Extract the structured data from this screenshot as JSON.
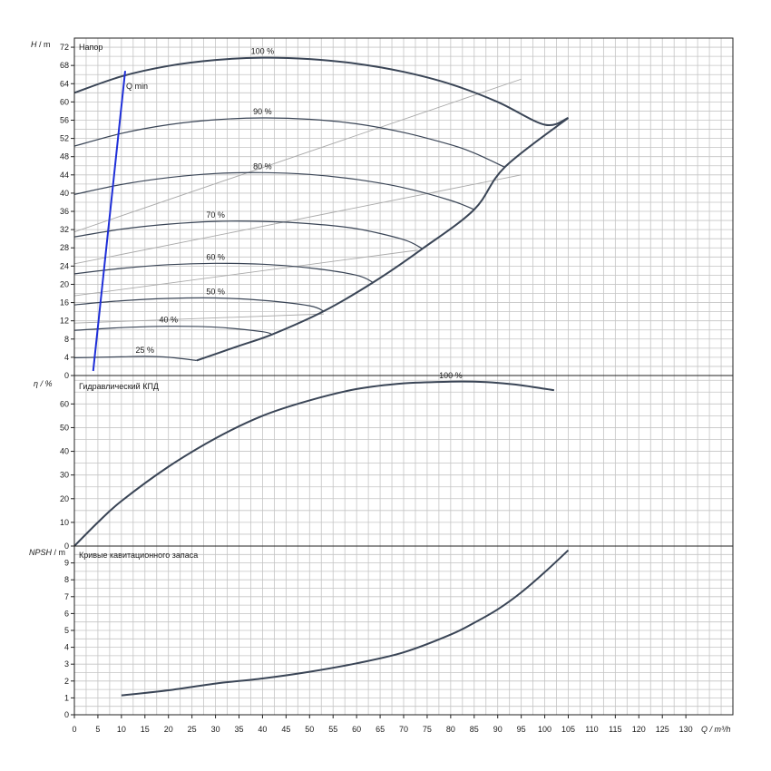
{
  "chart_data": [
    {
      "type": "line",
      "title": "Напор",
      "ylabel": "H / m",
      "xlabel": "Q / m³/h",
      "xlim": [
        0,
        140
      ],
      "ylim": [
        0,
        74
      ],
      "yticks": [
        0,
        4,
        8,
        12,
        16,
        20,
        24,
        28,
        32,
        36,
        40,
        44,
        48,
        52,
        56,
        60,
        64,
        68,
        72
      ],
      "grid": true,
      "series": [
        {
          "name": "100 %",
          "x": [
            0,
            10,
            20,
            30,
            40,
            50,
            60,
            70,
            80,
            90,
            100,
            105
          ],
          "y": [
            62,
            65.6,
            67.9,
            69.2,
            69.7,
            69.4,
            68.4,
            66.6,
            63.9,
            60,
            55,
            56.5
          ]
        },
        {
          "name": "90 %",
          "x": [
            0,
            10,
            20,
            30,
            40,
            50,
            60,
            70,
            80,
            85,
            91.5
          ],
          "y": [
            50.3,
            53.1,
            55,
            56.1,
            56.5,
            56.2,
            55.2,
            53.3,
            50.6,
            48.8,
            45.7
          ]
        },
        {
          "name": "80 %",
          "x": [
            0,
            10,
            20,
            30,
            40,
            50,
            60,
            70,
            80,
            85
          ],
          "y": [
            39.7,
            41.9,
            43.4,
            44.3,
            44.5,
            44.1,
            43,
            41.2,
            38.4,
            36.4
          ]
        },
        {
          "name": "70 %",
          "x": [
            0,
            10,
            20,
            30,
            40,
            50,
            60,
            70,
            74
          ],
          "y": [
            30.4,
            32.1,
            33.2,
            33.8,
            33.8,
            33.3,
            32.2,
            29.8,
            27.8
          ]
        },
        {
          "name": "60 %",
          "x": [
            0,
            10,
            20,
            30,
            40,
            50,
            60,
            63.5
          ],
          "y": [
            22.3,
            23.5,
            24.3,
            24.6,
            24.4,
            23.6,
            22,
            20.4
          ]
        },
        {
          "name": "50 %",
          "x": [
            0,
            10,
            20,
            30,
            40,
            50,
            53
          ],
          "y": [
            15.5,
            16.4,
            16.9,
            17,
            16.5,
            15.3,
            14.1
          ]
        },
        {
          "name": "40 %",
          "x": [
            0,
            10,
            20,
            30,
            40,
            42
          ],
          "y": [
            9.9,
            10.5,
            10.8,
            10.6,
            9.6,
            9
          ]
        },
        {
          "name": "25 %",
          "x": [
            0,
            5,
            10,
            15,
            20,
            26
          ],
          "y": [
            3.9,
            4,
            4.1,
            4.2,
            4,
            3.3
          ]
        }
      ],
      "max_boundary": {
        "x": [
          26,
          35,
          42,
          53,
          63.5,
          74,
          85,
          91.5,
          105
        ],
        "y": [
          3.3,
          6.5,
          9,
          14.1,
          20.4,
          27.8,
          36.4,
          45.7,
          56.5
        ]
      },
      "system_lines": [
        {
          "x": [
            0,
            95
          ],
          "y": [
            31.5,
            65
          ]
        },
        {
          "x": [
            0,
            95
          ],
          "y": [
            24.5,
            44
          ]
        },
        {
          "x": [
            0,
            73
          ],
          "y": [
            17.5,
            27.5
          ]
        },
        {
          "x": [
            0,
            53
          ],
          "y": [
            11.5,
            13.5
          ]
        }
      ],
      "qmin_line": {
        "label": "Q min",
        "x": [
          4,
          10.8
        ],
        "y": [
          1,
          66.8
        ]
      }
    },
    {
      "type": "line",
      "title": "Гидравлический КПД",
      "ylabel": "η / %",
      "xlabel": "Q / m³/h",
      "xlim": [
        0,
        140
      ],
      "ylim": [
        0,
        72
      ],
      "yticks": [
        0,
        10,
        20,
        30,
        40,
        50,
        60
      ],
      "grid": true,
      "series": [
        {
          "name": "100 %",
          "x": [
            0,
            5,
            10,
            20,
            30,
            40,
            50,
            60,
            70,
            80,
            85,
            90,
            95,
            100,
            102
          ],
          "y": [
            0,
            10,
            19,
            33.5,
            45.5,
            55,
            61.5,
            66.3,
            68.7,
            69.4,
            69.4,
            68.9,
            67.9,
            66.4,
            65.8
          ]
        }
      ]
    },
    {
      "type": "line",
      "title": "Кривые кавитационного запаса",
      "ylabel": "NPSH / m",
      "xlabel": "Q / m³/h",
      "xlim": [
        0,
        140
      ],
      "ylim": [
        0,
        10
      ],
      "yticks": [
        0,
        1,
        2,
        3,
        4,
        5,
        6,
        7,
        8,
        9
      ],
      "xticks": [
        0,
        5,
        10,
        15,
        20,
        25,
        30,
        35,
        40,
        45,
        50,
        55,
        60,
        65,
        70,
        75,
        80,
        85,
        90,
        95,
        100,
        105,
        110,
        115,
        120,
        125,
        130
      ],
      "grid": true,
      "series": [
        {
          "name": "",
          "x": [
            10,
            20,
            30,
            40,
            50,
            60,
            70,
            80,
            85,
            90,
            95,
            100,
            105
          ],
          "y": [
            1.15,
            1.45,
            1.85,
            2.15,
            2.55,
            3.05,
            3.7,
            4.75,
            5.45,
            6.25,
            7.25,
            8.45,
            9.75
          ]
        }
      ]
    }
  ],
  "labels": {
    "head_axis_h": "H",
    "head_axis_unit": " / m",
    "eta_axis": "η / %",
    "npsh_axis_sym": "NPSH",
    "npsh_axis_unit": " / m",
    "q_axis": "Q / m³/h",
    "qmin_label": "Q min",
    "head_title": "Напор",
    "eta_title": "Гидравлический КПД",
    "npsh_title": "Кривые кавитационного запаса"
  },
  "colors": {
    "curve": "#3a4556",
    "grid": "#c4c4c4",
    "frame": "#222222",
    "system_line": "#a9a9a9",
    "qmin": "#1f2fd8"
  }
}
